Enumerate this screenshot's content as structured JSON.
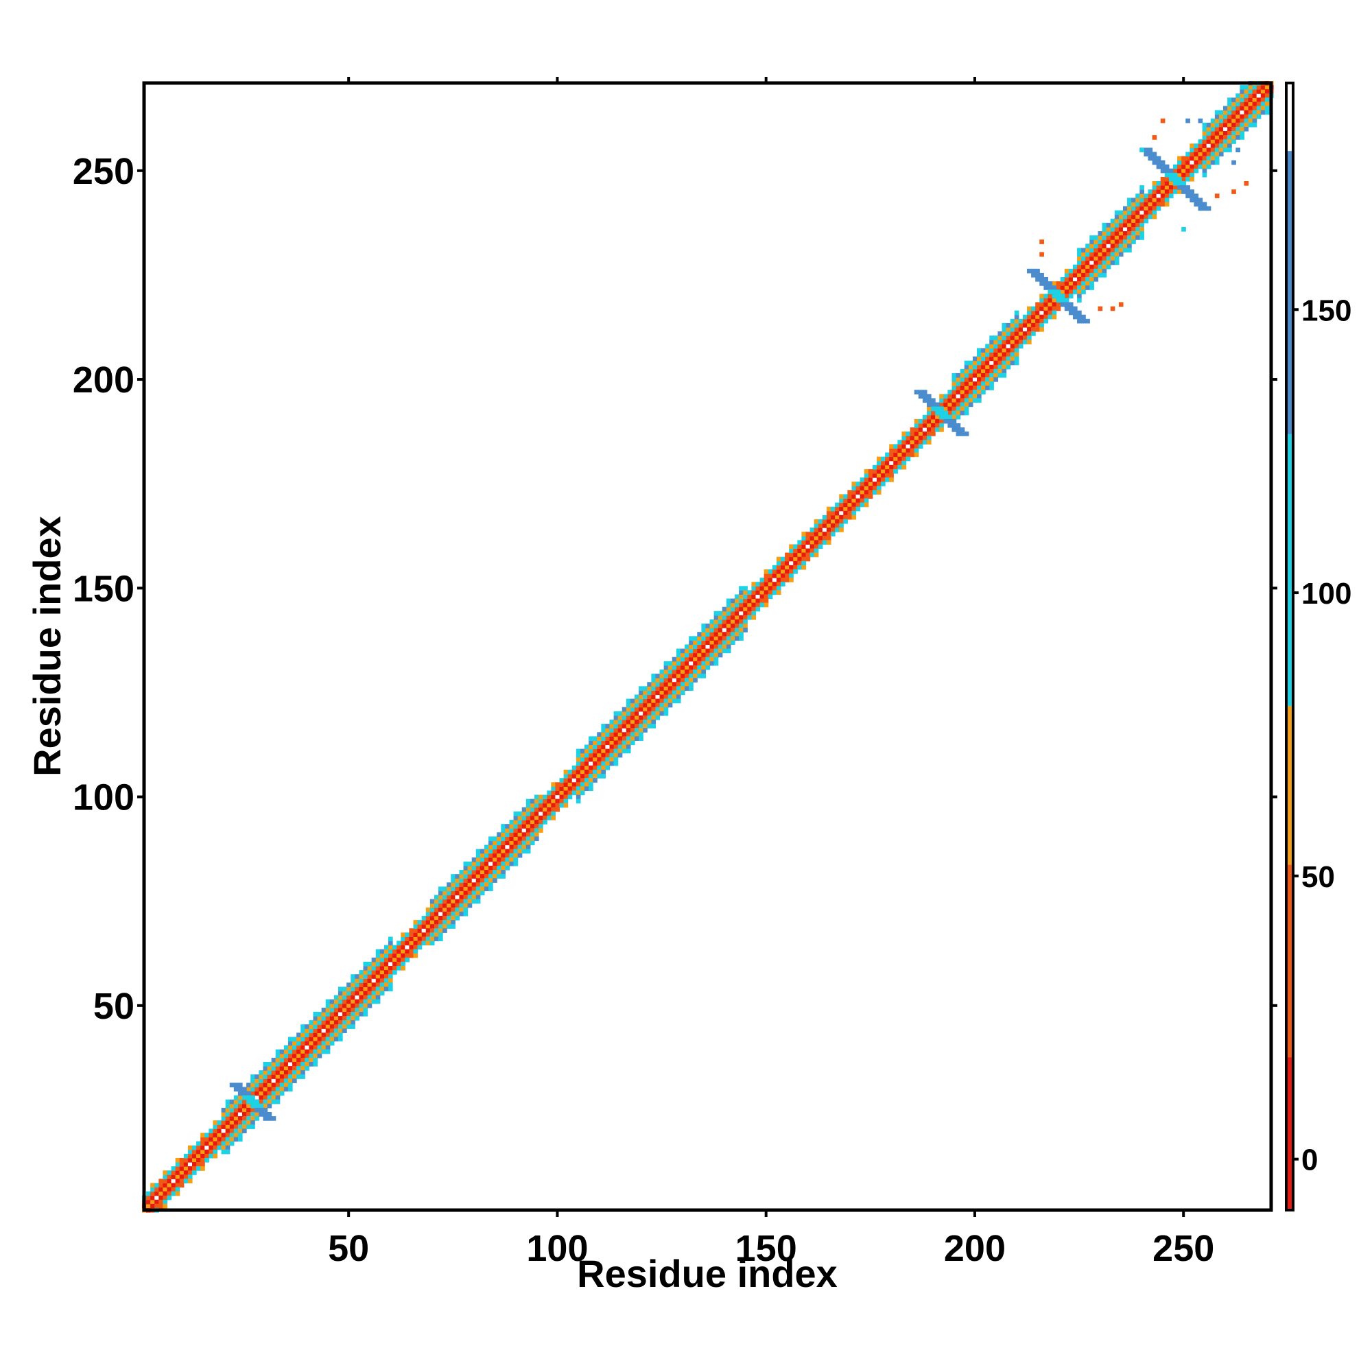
{
  "chart_data": {
    "type": "heatmap",
    "title": "",
    "xlabel": "Residue index",
    "ylabel": "Residue index",
    "xlim": [
      1,
      271
    ],
    "ylim": [
      1,
      271
    ],
    "x_ticks": [
      50,
      100,
      150,
      200,
      250
    ],
    "y_ticks": [
      50,
      100,
      150,
      200,
      250
    ],
    "grid": false,
    "legend": "colorbar-right",
    "colorbar": {
      "range": [
        -9,
        190
      ],
      "ticks": [
        0,
        50,
        100,
        150
      ],
      "segments": [
        {
          "from": -9,
          "to": 18,
          "color": "#e8190f"
        },
        {
          "from": 18,
          "to": 52,
          "color": "#f05a14"
        },
        {
          "from": 52,
          "to": 80,
          "color": "#f5a014"
        },
        {
          "from": 80,
          "to": 128,
          "color": "#1ed2e6"
        },
        {
          "from": 128,
          "to": 178,
          "color": "#4a8ccd"
        },
        {
          "from": 178,
          "to": 190,
          "color": "#ffffff"
        }
      ]
    },
    "color_bins": {
      "red": "#e8190f",
      "orange": "#f05a14",
      "amber": "#f5a014",
      "cyan": "#1ed2e6",
      "blue": "#4a8ccd",
      "steel": "#4a6fb5"
    },
    "diagonal_bands": [
      {
        "offset": 0,
        "color": "#f5a014"
      },
      {
        "offset": 1,
        "color": "#e8190f"
      },
      {
        "offset": -1,
        "color": "#e8190f"
      },
      {
        "offset": 2,
        "color": "#f05a14"
      },
      {
        "offset": -2,
        "color": "#f05a14"
      },
      {
        "offset": 3,
        "color": "#1ed2e6"
      },
      {
        "offset": -3,
        "color": "#1ed2e6"
      },
      {
        "offset": 4,
        "color": "#f5a014"
      },
      {
        "offset": -4,
        "color": "#f5a014"
      }
    ],
    "helix_regions": [
      {
        "start": 20,
        "end": 60
      },
      {
        "start": 70,
        "end": 95
      },
      {
        "start": 105,
        "end": 145
      },
      {
        "start": 195,
        "end": 210
      },
      {
        "start": 225,
        "end": 240
      },
      {
        "start": 255,
        "end": 270
      }
    ],
    "cross_contacts": [
      {
        "center": 27,
        "size": 4,
        "color": "#4a8ccd"
      },
      {
        "center": 192,
        "size": 5,
        "color": "#4a8ccd"
      },
      {
        "center": 220,
        "size": 6,
        "color": "#4a8ccd"
      },
      {
        "center": 248,
        "size": 7,
        "color": "#4a8ccd"
      }
    ],
    "offdiag_points": [
      {
        "x": 230,
        "y": 217,
        "v": 45
      },
      {
        "x": 233,
        "y": 217,
        "v": 45
      },
      {
        "x": 235,
        "y": 218,
        "v": 45
      },
      {
        "x": 216,
        "y": 230,
        "v": 45
      },
      {
        "x": 216,
        "y": 233,
        "v": 45
      },
      {
        "x": 245,
        "y": 262,
        "v": 45
      },
      {
        "x": 243,
        "y": 258,
        "v": 45
      },
      {
        "x": 258,
        "y": 244,
        "v": 45
      },
      {
        "x": 262,
        "y": 245,
        "v": 45
      },
      {
        "x": 265,
        "y": 247,
        "v": 45
      },
      {
        "x": 251,
        "y": 262,
        "v": 140
      },
      {
        "x": 254,
        "y": 262,
        "v": 140
      },
      {
        "x": 262,
        "y": 252,
        "v": 140
      },
      {
        "x": 263,
        "y": 255,
        "v": 140
      },
      {
        "x": 240,
        "y": 255,
        "v": 110
      },
      {
        "x": 250,
        "y": 236,
        "v": 110
      }
    ]
  }
}
